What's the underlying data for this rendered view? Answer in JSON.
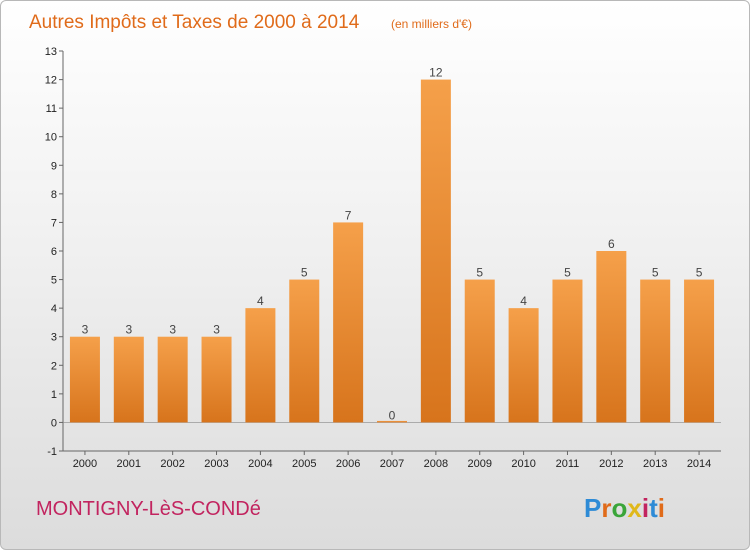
{
  "title": "Autres Impôts et Taxes de 2000 à 2014",
  "subtitle": "(en milliers d'€)",
  "commune": "MONTIGNY-LèS-CONDé",
  "logo": {
    "text": "Proxiti",
    "colors": [
      "#2e8bd6",
      "#e06b1a",
      "#3aa53a",
      "#e0b81a",
      "#c2245f",
      "#2e8bd6",
      "#e06b1a"
    ]
  },
  "colors": {
    "bar_light": "#f5a04a",
    "bar_dark": "#d7741c",
    "title": "#e06b1a",
    "commune": "#c2245f"
  },
  "chart_data": {
    "type": "bar",
    "title": "Autres Impôts et Taxes de 2000 à 2014",
    "subtitle": "(en milliers d'€)",
    "xlabel": "",
    "ylabel": "",
    "categories": [
      "2000",
      "2001",
      "2002",
      "2003",
      "2004",
      "2005",
      "2006",
      "2007",
      "2008",
      "2009",
      "2010",
      "2011",
      "2012",
      "2013",
      "2014"
    ],
    "values": [
      3,
      3,
      3,
      3,
      4,
      5,
      7,
      0,
      12,
      5,
      4,
      5,
      6,
      5,
      5
    ],
    "ylim": [
      -1,
      13
    ],
    "yticks": [
      -1,
      0,
      1,
      2,
      3,
      4,
      5,
      6,
      7,
      8,
      9,
      10,
      11,
      12,
      13
    ],
    "grid": false,
    "legend": "none"
  }
}
